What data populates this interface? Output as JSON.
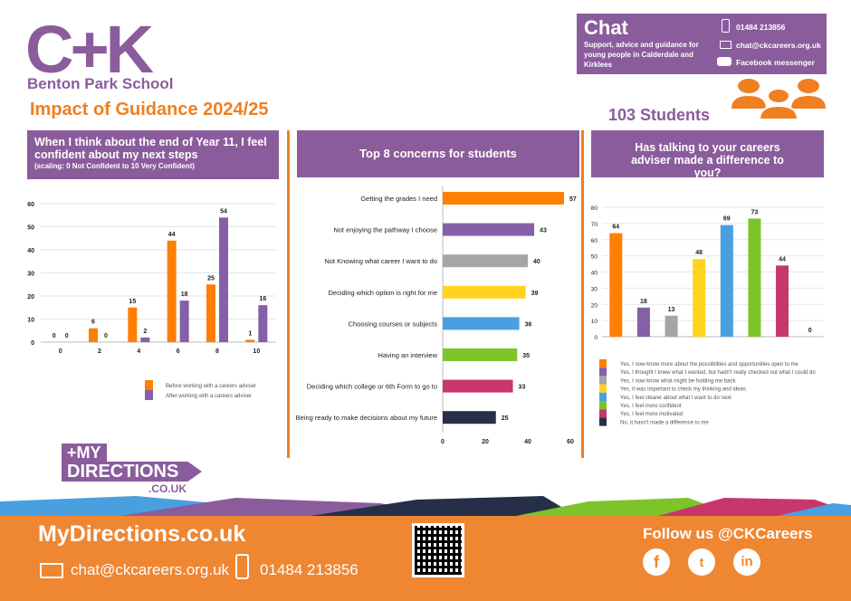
{
  "header": {
    "logo": "C+K",
    "school": "Benton Park School",
    "title": "Impact of Guidance 2024/25",
    "students": "103 Students"
  },
  "chat": {
    "title": "Chat",
    "subtitle": "Support, advice and guidance for young people in Calderdale and Kirklees",
    "phone": "01484 213856",
    "email": "chat@ckcareers.org.uk",
    "messenger": "Facebook messenger"
  },
  "colors": {
    "orange": "#ff7f00",
    "purple": "#8560a8",
    "brand_purple": "#8b5c9c",
    "footer_orange": "#ef8632"
  },
  "chart_data": [
    {
      "type": "bar",
      "title": "When I think about the end of Year 11, I feel confident about my next steps",
      "subtitle": "(scaling: 0 Not Confident to 10 Very Confident)",
      "categories": [
        "0",
        "2",
        "4",
        "6",
        "8",
        "10"
      ],
      "ylim": [
        0,
        60
      ],
      "yticks": [
        0,
        10,
        20,
        30,
        40,
        50,
        60
      ],
      "grid": true,
      "legend": "bottom-right",
      "series": [
        {
          "name": "Before working with a careers adviser",
          "color": "#ff7f00",
          "values": [
            0,
            6,
            15,
            44,
            25,
            1
          ]
        },
        {
          "name": "After working with a careers adviser",
          "color": "#8560a8",
          "values": [
            0,
            0,
            2,
            18,
            54,
            16
          ]
        }
      ]
    },
    {
      "type": "bar",
      "orientation": "horizontal",
      "title": "Top 8 concerns for students",
      "xlim": [
        0,
        60
      ],
      "xticks": [
        0,
        20,
        40,
        60
      ],
      "categories": [
        "Getting the grades I need",
        "Not enjoying the pathway I choose",
        "Not Knowing what career I want to do",
        "Deciding which option is right for me",
        "Choosing courses or subjects",
        "Having an interview",
        "Deciding which college or 6th Form to go to",
        "Being ready to make decisions about my future"
      ],
      "values": [
        57,
        43,
        40,
        39,
        36,
        35,
        33,
        25
      ],
      "colors": [
        "#ff7f00",
        "#8560a8",
        "#a5a5a5",
        "#ffd320",
        "#4a9fe0",
        "#7cc42a",
        "#c8366e",
        "#253048"
      ]
    },
    {
      "type": "bar",
      "title": "Has talking to your careers adviser made a difference to you?",
      "ylim": [
        0,
        80
      ],
      "yticks": [
        0,
        10,
        20,
        30,
        40,
        50,
        60,
        70,
        80
      ],
      "grid": true,
      "legend": "bottom",
      "categories": [
        "Yes, I now know more about the possibilities and opportunities open to me",
        "Yes, I thought I knew what I wanted, but hadn't really checked out what I could do",
        "Yes, I now know what might be holding me back",
        "Yes, it was important to check my thinking and ideas",
        "Yes, I feel clearer about what I want to do next",
        "Yes, I feel more confident",
        "Yes, I feel more motivated",
        "No, it hasn't made a difference to me"
      ],
      "values": [
        64,
        18,
        13,
        48,
        69,
        73,
        44,
        0
      ],
      "colors": [
        "#ff7f00",
        "#8560a8",
        "#a5a5a5",
        "#ffd320",
        "#4a9fe0",
        "#7cc42a",
        "#c8366e",
        "#253048"
      ]
    }
  ],
  "mydirections_logo": "+MY DIRECTIONS .CO.UK",
  "footer": {
    "site": "MyDirections.co.uk",
    "email": "chat@ckcareers.org.uk",
    "phone": "01484 213856",
    "follow": "Follow us @CKCareers",
    "social": [
      "facebook",
      "twitter",
      "linkedin"
    ]
  }
}
